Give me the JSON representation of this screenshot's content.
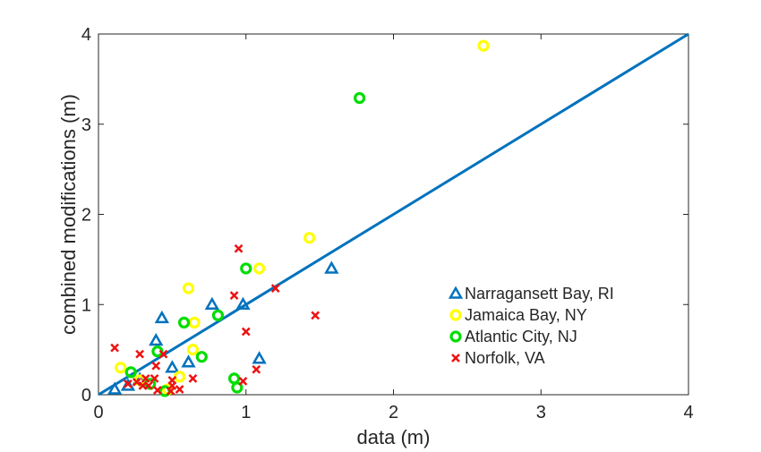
{
  "chart_data": {
    "type": "scatter",
    "xlabel": "data (m)",
    "ylabel": "combined modifications (m)",
    "xlim": [
      0,
      4
    ],
    "ylim": [
      0,
      4
    ],
    "x_ticks": [
      "0",
      "1",
      "2",
      "3",
      "4"
    ],
    "y_ticks": [
      "0",
      "1",
      "2",
      "3",
      "4"
    ],
    "grid": false,
    "legend_position": "right",
    "reference_line": {
      "x": [
        0,
        4
      ],
      "y": [
        0,
        4
      ],
      "color": "#0072bd"
    },
    "series": [
      {
        "name": "Narragansett Bay, RI",
        "marker": "triangle",
        "color": "#0072bd",
        "points": [
          [
            0.11,
            0.06
          ],
          [
            0.2,
            0.1
          ],
          [
            0.28,
            0.17
          ],
          [
            0.39,
            0.6
          ],
          [
            0.43,
            0.85
          ],
          [
            0.5,
            0.3
          ],
          [
            0.61,
            0.36
          ],
          [
            0.77,
            1.0
          ],
          [
            0.98,
            1.0
          ],
          [
            1.09,
            0.4
          ],
          [
            1.58,
            1.4
          ]
        ]
      },
      {
        "name": "Jamaica Bay, NY",
        "marker": "circle",
        "color": "#ffff00",
        "points": [
          [
            0.15,
            0.3
          ],
          [
            0.28,
            0.16
          ],
          [
            0.47,
            0.06
          ],
          [
            0.55,
            0.2
          ],
          [
            0.61,
            1.18
          ],
          [
            0.64,
            0.5
          ],
          [
            0.65,
            0.8
          ],
          [
            1.09,
            1.4
          ],
          [
            1.43,
            1.74
          ],
          [
            2.61,
            3.87
          ]
        ]
      },
      {
        "name": "Atlantic City, NJ",
        "marker": "circle",
        "color": "#00dd00",
        "points": [
          [
            0.22,
            0.25
          ],
          [
            0.35,
            0.12
          ],
          [
            0.4,
            0.48
          ],
          [
            0.45,
            0.04
          ],
          [
            0.58,
            0.8
          ],
          [
            0.7,
            0.42
          ],
          [
            0.81,
            0.88
          ],
          [
            0.92,
            0.18
          ],
          [
            0.94,
            0.08
          ],
          [
            1.0,
            1.4
          ],
          [
            1.77,
            3.29
          ]
        ]
      },
      {
        "name": "Norfolk, VA",
        "marker": "x",
        "color": "#ee1111",
        "points": [
          [
            0.11,
            0.52
          ],
          [
            0.2,
            0.12
          ],
          [
            0.26,
            0.14
          ],
          [
            0.28,
            0.45
          ],
          [
            0.3,
            0.1
          ],
          [
            0.32,
            0.18
          ],
          [
            0.34,
            0.1
          ],
          [
            0.38,
            0.18
          ],
          [
            0.39,
            0.32
          ],
          [
            0.4,
            0.05
          ],
          [
            0.44,
            0.45
          ],
          [
            0.49,
            0.04
          ],
          [
            0.5,
            0.1
          ],
          [
            0.5,
            0.16
          ],
          [
            0.55,
            0.06
          ],
          [
            0.64,
            0.18
          ],
          [
            0.92,
            1.1
          ],
          [
            0.95,
            1.62
          ],
          [
            0.98,
            0.15
          ],
          [
            1.0,
            0.7
          ],
          [
            1.07,
            0.28
          ],
          [
            1.2,
            1.18
          ],
          [
            1.47,
            0.88
          ]
        ]
      }
    ]
  }
}
